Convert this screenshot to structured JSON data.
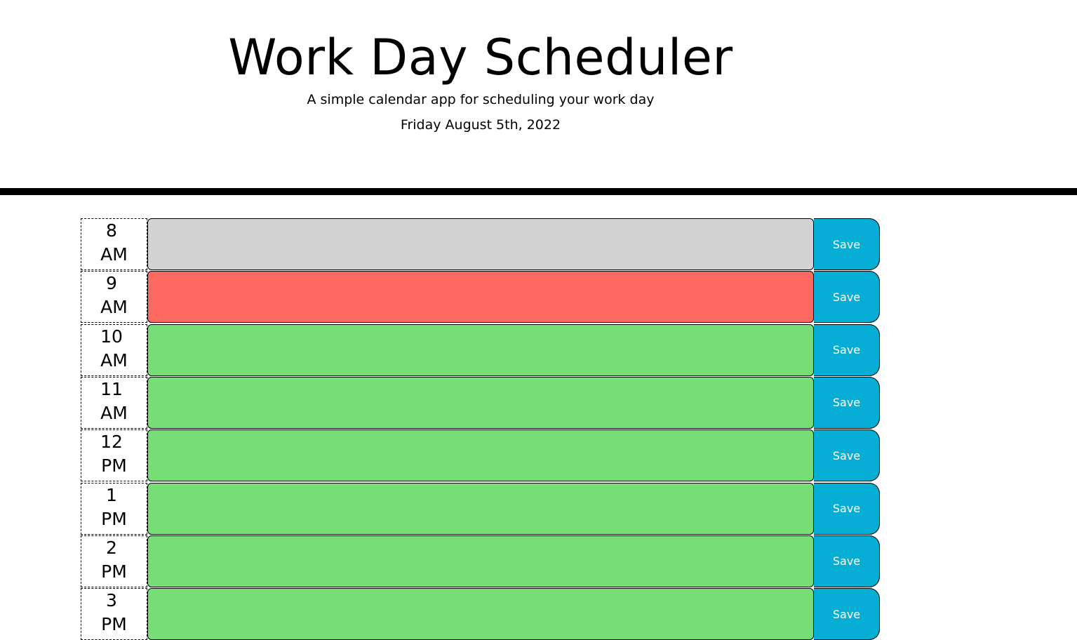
{
  "header": {
    "title": "Work Day Scheduler",
    "subtitle": "A simple calendar app for scheduling your work day",
    "date": "Friday August 5th, 2022"
  },
  "colors": {
    "past": "#d3d3d3",
    "present": "#ff6961",
    "future": "#77dd77",
    "save": "#06aed5"
  },
  "rows": [
    {
      "hour": "8",
      "period": "AM",
      "state": "past",
      "text": "",
      "save_label": "Save"
    },
    {
      "hour": "9",
      "period": "AM",
      "state": "present",
      "text": "",
      "save_label": "Save"
    },
    {
      "hour": "10",
      "period": "AM",
      "state": "future",
      "text": "",
      "save_label": "Save"
    },
    {
      "hour": "11",
      "period": "AM",
      "state": "future",
      "text": "",
      "save_label": "Save"
    },
    {
      "hour": "12",
      "period": "PM",
      "state": "future",
      "text": "",
      "save_label": "Save"
    },
    {
      "hour": "1",
      "period": "PM",
      "state": "future",
      "text": "",
      "save_label": "Save"
    },
    {
      "hour": "2",
      "period": "PM",
      "state": "future",
      "text": "",
      "save_label": "Save"
    },
    {
      "hour": "3",
      "period": "PM",
      "state": "future",
      "text": "",
      "save_label": "Save"
    }
  ]
}
